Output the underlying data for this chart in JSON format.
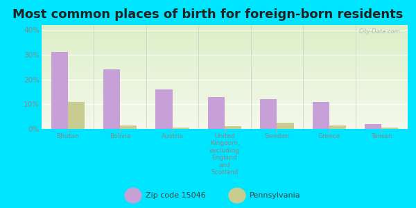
{
  "title": "Most common places of birth for foreign-born residents",
  "categories": [
    "Bhutan",
    "Bolivia",
    "Austria",
    "United\nKingdom,\nexcluding\nEngland\nand\nScotland",
    "Sweden",
    "Greece",
    "Taiwan"
  ],
  "zip_values": [
    31,
    24,
    16,
    13,
    12,
    11,
    2
  ],
  "pa_values": [
    11,
    1.5,
    0.5,
    1,
    2.5,
    1.5,
    0.5
  ],
  "zip_color": "#c8a0d8",
  "pa_color": "#c8cc90",
  "outer_bg": "#00e5ff",
  "title_fontsize": 13,
  "legend_label_zip": "Zip code 15046",
  "legend_label_pa": "Pennsylvania",
  "ylim": [
    0,
    42
  ],
  "yticks": [
    0,
    10,
    20,
    30,
    40
  ],
  "ytick_labels": [
    "0%",
    "10%",
    "20%",
    "30%",
    "40%"
  ],
  "watermark": "City-Data.com",
  "tick_color": "#888888",
  "label_color": "#888888"
}
